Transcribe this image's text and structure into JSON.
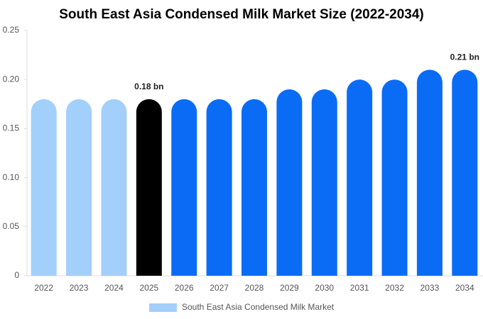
{
  "chart_data": {
    "type": "bar",
    "title": "South East Asia Condensed Milk Market Size (2022-2034)",
    "categories": [
      "2022",
      "2023",
      "2024",
      "2025",
      "2026",
      "2027",
      "2028",
      "2029",
      "2030",
      "2031",
      "2032",
      "2033",
      "2034"
    ],
    "series": [
      {
        "name": "South East Asia Condensed Milk Market",
        "color": "#a3cffb",
        "values": [
          0.18,
          0.18,
          0.18,
          0.18,
          0.18,
          0.18,
          0.18,
          0.19,
          0.19,
          0.2,
          0.2,
          0.21,
          0.21
        ],
        "value_labels": [
          null,
          null,
          null,
          "0.18 bn",
          null,
          null,
          null,
          null,
          null,
          null,
          null,
          null,
          "0.21 bn"
        ],
        "colors": [
          "#a3cffb",
          "#a3cffb",
          "#a3cffb",
          "#000000",
          "#0a6cf5",
          "#0a6cf5",
          "#0a6cf5",
          "#0a6cf5",
          "#0a6cf5",
          "#0a6cf5",
          "#0a6cf5",
          "#0a6cf5",
          "#0a6cf5"
        ]
      }
    ],
    "ylim": [
      0,
      0.25
    ],
    "yticks": [
      0,
      0.05,
      {
        "value": 0.1,
        "label": "0.10"
      },
      0.15,
      {
        "value": 0.2,
        "label": "0.20"
      },
      0.25
    ],
    "grid": false
  }
}
